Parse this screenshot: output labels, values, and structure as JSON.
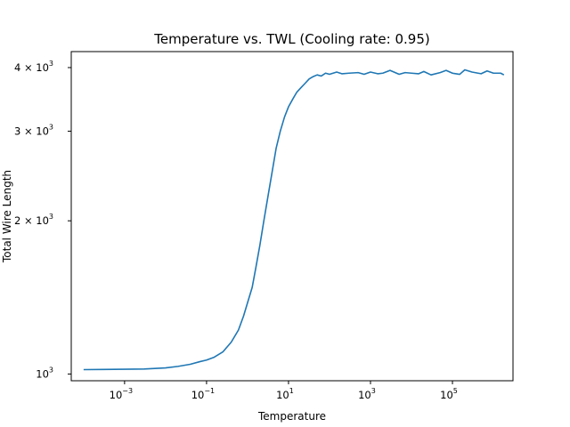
{
  "chart_data": {
    "type": "line",
    "title": "Temperature vs. TWL (Cooling rate: 0.95)",
    "xlabel": "Temperature",
    "ylabel": "Total Wire Length",
    "xscale": "log",
    "yscale": "log",
    "xlim": [
      5e-05,
      3000000
    ],
    "ylim": [
      970,
      4300
    ],
    "grid": false,
    "line_color": "#1f77b4",
    "x_ticks": [
      {
        "value": 0.001,
        "label": "10",
        "exp": "−3"
      },
      {
        "value": 0.1,
        "label": "10",
        "exp": "−1"
      },
      {
        "value": 10,
        "label": "10",
        "exp": "1"
      },
      {
        "value": 1000,
        "label": "10",
        "exp": "3"
      },
      {
        "value": 100000,
        "label": "10",
        "exp": "5"
      }
    ],
    "y_ticks": [
      {
        "value": 1000,
        "label": "10",
        "exp": "3"
      },
      {
        "value": 2000,
        "label": "2 × 10",
        "exp": "3"
      },
      {
        "value": 3000,
        "label": "3 × 10",
        "exp": "3"
      },
      {
        "value": 4000,
        "label": "4 × 10",
        "exp": "3"
      }
    ],
    "series": [
      {
        "x": [
          0.0001,
          0.0003,
          0.001,
          0.003,
          0.01,
          0.02,
          0.04,
          0.07,
          0.1,
          0.15,
          0.25,
          0.4,
          0.6,
          0.8,
          1.0,
          1.3,
          1.6,
          2.0,
          2.5,
          3.2,
          4.0,
          5.0,
          6.3,
          8.0,
          10,
          13,
          16,
          20,
          25,
          32,
          40,
          50,
          63,
          80,
          100,
          150,
          200,
          300,
          500,
          700,
          1000,
          1500,
          2000,
          3000,
          5000,
          7000,
          10000,
          15000,
          20000,
          30000,
          50000,
          70000,
          100000,
          150000,
          200000,
          300000,
          500000,
          700000,
          1000000,
          1500000,
          1800000
        ],
        "values": [
          1020,
          1021,
          1022,
          1023,
          1028,
          1035,
          1045,
          1058,
          1065,
          1078,
          1105,
          1155,
          1220,
          1300,
          1380,
          1480,
          1620,
          1790,
          2000,
          2250,
          2500,
          2780,
          3000,
          3200,
          3350,
          3480,
          3580,
          3650,
          3720,
          3800,
          3840,
          3870,
          3850,
          3900,
          3880,
          3920,
          3890,
          3900,
          3910,
          3880,
          3920,
          3890,
          3900,
          3950,
          3880,
          3910,
          3900,
          3890,
          3930,
          3870,
          3910,
          3950,
          3900,
          3880,
          3960,
          3920,
          3890,
          3940,
          3900,
          3900,
          3870
        ]
      }
    ]
  }
}
